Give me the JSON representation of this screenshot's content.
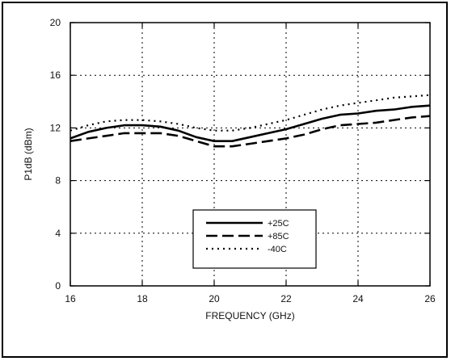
{
  "chart_data": {
    "type": "line",
    "xlabel": "FREQUENCY (GHz)",
    "ylabel": "P1dB (dBm)",
    "xlim": [
      16,
      26
    ],
    "ylim": [
      0,
      20
    ],
    "xticks": [
      16,
      18,
      20,
      22,
      24,
      26
    ],
    "yticks": [
      0,
      4,
      8,
      12,
      16,
      20
    ],
    "grid": true,
    "legend_position": "lower-center",
    "series": [
      {
        "name": "+25C",
        "style": "solid",
        "x": [
          16,
          16.5,
          17,
          17.5,
          18,
          18.5,
          19,
          19.5,
          20,
          20.5,
          21,
          21.5,
          22,
          22.5,
          23,
          23.5,
          24,
          24.5,
          25,
          25.5,
          26
        ],
        "y": [
          11.2,
          11.7,
          12.0,
          12.2,
          12.2,
          12.1,
          11.8,
          11.3,
          11.0,
          11.0,
          11.3,
          11.6,
          11.9,
          12.3,
          12.7,
          13.0,
          13.1,
          13.3,
          13.4,
          13.6,
          13.7
        ]
      },
      {
        "name": "+85C",
        "style": "dashed",
        "x": [
          16,
          16.5,
          17,
          17.5,
          18,
          18.5,
          19,
          19.5,
          20,
          20.5,
          21,
          21.5,
          22,
          22.5,
          23,
          23.5,
          24,
          24.5,
          25,
          25.5,
          26
        ],
        "y": [
          11.0,
          11.2,
          11.4,
          11.6,
          11.6,
          11.6,
          11.4,
          11.0,
          10.6,
          10.6,
          10.8,
          11.0,
          11.2,
          11.5,
          11.9,
          12.2,
          12.3,
          12.4,
          12.6,
          12.8,
          12.9
        ]
      },
      {
        "name": "-40C",
        "style": "dotted",
        "x": [
          16,
          16.5,
          17,
          17.5,
          18,
          18.5,
          19,
          19.5,
          20,
          20.5,
          21,
          21.5,
          22,
          22.5,
          23,
          23.5,
          24,
          24.5,
          25,
          25.5,
          26
        ],
        "y": [
          11.8,
          12.2,
          12.5,
          12.6,
          12.6,
          12.5,
          12.3,
          12.0,
          11.8,
          11.8,
          12.0,
          12.3,
          12.6,
          13.0,
          13.4,
          13.7,
          13.9,
          14.1,
          14.3,
          14.4,
          14.5
        ]
      }
    ]
  }
}
